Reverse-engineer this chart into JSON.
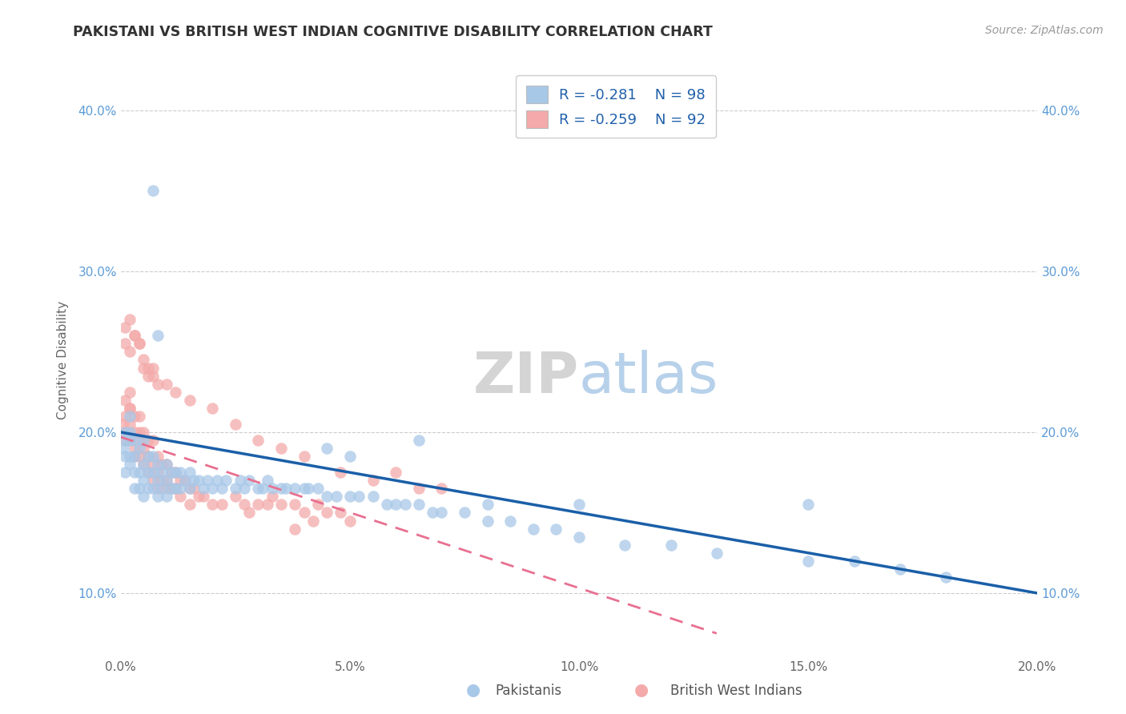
{
  "title": "PAKISTANI VS BRITISH WEST INDIAN COGNITIVE DISABILITY CORRELATION CHART",
  "source": "Source: ZipAtlas.com",
  "ylabel": "Cognitive Disability",
  "xlim": [
    0.0,
    0.2
  ],
  "ylim": [
    0.06,
    0.43
  ],
  "xticks": [
    0.0,
    0.05,
    0.1,
    0.15,
    0.2
  ],
  "xtick_labels": [
    "0.0%",
    "5.0%",
    "10.0%",
    "15.0%",
    "20.0%"
  ],
  "yticks": [
    0.1,
    0.2,
    0.3,
    0.4
  ],
  "ytick_labels": [
    "10.0%",
    "20.0%",
    "30.0%",
    "40.0%"
  ],
  "r_blue": -0.281,
  "n_blue": 98,
  "r_pink": -0.259,
  "n_pink": 92,
  "blue_color": "#A8C8E8",
  "pink_color": "#F4AAAA",
  "blue_line_color": "#1A5FA8",
  "pink_line_color": "#E87090",
  "background_color": "#ffffff",
  "grid_color": "#cccccc",
  "legend_label_blue": "Pakistanis",
  "legend_label_pink": "British West Indians",
  "blue_trend_x0": 0.0,
  "blue_trend_y0": 0.2,
  "blue_trend_x1": 0.2,
  "blue_trend_y1": 0.1,
  "pink_trend_x0": 0.0,
  "pink_trend_y0": 0.197,
  "pink_trend_x1": 0.13,
  "pink_trend_y1": 0.075,
  "blue_scatter_x": [
    0.0005,
    0.001,
    0.001,
    0.001,
    0.001,
    0.002,
    0.002,
    0.002,
    0.002,
    0.002,
    0.003,
    0.003,
    0.003,
    0.003,
    0.004,
    0.004,
    0.004,
    0.005,
    0.005,
    0.005,
    0.005,
    0.006,
    0.006,
    0.006,
    0.007,
    0.007,
    0.007,
    0.008,
    0.008,
    0.008,
    0.009,
    0.009,
    0.01,
    0.01,
    0.01,
    0.011,
    0.011,
    0.012,
    0.012,
    0.013,
    0.013,
    0.014,
    0.015,
    0.015,
    0.016,
    0.017,
    0.018,
    0.019,
    0.02,
    0.021,
    0.022,
    0.023,
    0.025,
    0.026,
    0.027,
    0.028,
    0.03,
    0.031,
    0.032,
    0.033,
    0.035,
    0.036,
    0.038,
    0.04,
    0.041,
    0.043,
    0.045,
    0.047,
    0.05,
    0.052,
    0.055,
    0.058,
    0.06,
    0.062,
    0.065,
    0.068,
    0.07,
    0.075,
    0.08,
    0.085,
    0.09,
    0.095,
    0.1,
    0.11,
    0.12,
    0.13,
    0.15,
    0.16,
    0.17,
    0.18,
    0.007,
    0.008,
    0.065,
    0.08,
    0.1,
    0.15,
    0.045,
    0.05
  ],
  "blue_scatter_y": [
    0.19,
    0.195,
    0.185,
    0.2,
    0.175,
    0.195,
    0.185,
    0.18,
    0.2,
    0.21,
    0.185,
    0.175,
    0.195,
    0.165,
    0.175,
    0.19,
    0.165,
    0.195,
    0.18,
    0.17,
    0.16,
    0.185,
    0.175,
    0.165,
    0.185,
    0.175,
    0.165,
    0.18,
    0.17,
    0.16,
    0.175,
    0.165,
    0.18,
    0.17,
    0.16,
    0.175,
    0.165,
    0.175,
    0.165,
    0.175,
    0.165,
    0.17,
    0.175,
    0.165,
    0.17,
    0.17,
    0.165,
    0.17,
    0.165,
    0.17,
    0.165,
    0.17,
    0.165,
    0.17,
    0.165,
    0.17,
    0.165,
    0.165,
    0.17,
    0.165,
    0.165,
    0.165,
    0.165,
    0.165,
    0.165,
    0.165,
    0.16,
    0.16,
    0.16,
    0.16,
    0.16,
    0.155,
    0.155,
    0.155,
    0.155,
    0.15,
    0.15,
    0.15,
    0.145,
    0.145,
    0.14,
    0.14,
    0.135,
    0.13,
    0.13,
    0.125,
    0.12,
    0.12,
    0.115,
    0.11,
    0.35,
    0.26,
    0.195,
    0.155,
    0.155,
    0.155,
    0.19,
    0.185
  ],
  "pink_scatter_x": [
    0.0005,
    0.001,
    0.001,
    0.001,
    0.001,
    0.002,
    0.002,
    0.002,
    0.002,
    0.002,
    0.003,
    0.003,
    0.003,
    0.003,
    0.004,
    0.004,
    0.004,
    0.004,
    0.005,
    0.005,
    0.005,
    0.006,
    0.006,
    0.006,
    0.007,
    0.007,
    0.007,
    0.008,
    0.008,
    0.008,
    0.009,
    0.009,
    0.01,
    0.01,
    0.01,
    0.011,
    0.011,
    0.012,
    0.012,
    0.013,
    0.013,
    0.014,
    0.015,
    0.015,
    0.016,
    0.017,
    0.018,
    0.02,
    0.022,
    0.025,
    0.027,
    0.03,
    0.032,
    0.035,
    0.038,
    0.04,
    0.043,
    0.045,
    0.048,
    0.05,
    0.002,
    0.003,
    0.004,
    0.005,
    0.006,
    0.007,
    0.008,
    0.01,
    0.012,
    0.015,
    0.02,
    0.025,
    0.03,
    0.035,
    0.04,
    0.048,
    0.055,
    0.06,
    0.065,
    0.07,
    0.001,
    0.001,
    0.002,
    0.003,
    0.004,
    0.005,
    0.006,
    0.007,
    0.038,
    0.028,
    0.033,
    0.042
  ],
  "pink_scatter_y": [
    0.205,
    0.22,
    0.21,
    0.2,
    0.195,
    0.225,
    0.215,
    0.205,
    0.195,
    0.215,
    0.2,
    0.21,
    0.19,
    0.185,
    0.21,
    0.195,
    0.185,
    0.2,
    0.2,
    0.19,
    0.18,
    0.195,
    0.185,
    0.175,
    0.195,
    0.18,
    0.17,
    0.185,
    0.175,
    0.165,
    0.18,
    0.17,
    0.18,
    0.165,
    0.17,
    0.175,
    0.165,
    0.175,
    0.165,
    0.17,
    0.16,
    0.17,
    0.165,
    0.155,
    0.165,
    0.16,
    0.16,
    0.155,
    0.155,
    0.16,
    0.155,
    0.155,
    0.155,
    0.155,
    0.155,
    0.15,
    0.155,
    0.15,
    0.15,
    0.145,
    0.25,
    0.26,
    0.255,
    0.245,
    0.24,
    0.235,
    0.23,
    0.23,
    0.225,
    0.22,
    0.215,
    0.205,
    0.195,
    0.19,
    0.185,
    0.175,
    0.17,
    0.175,
    0.165,
    0.165,
    0.255,
    0.265,
    0.27,
    0.26,
    0.255,
    0.24,
    0.235,
    0.24,
    0.14,
    0.15,
    0.16,
    0.145
  ]
}
